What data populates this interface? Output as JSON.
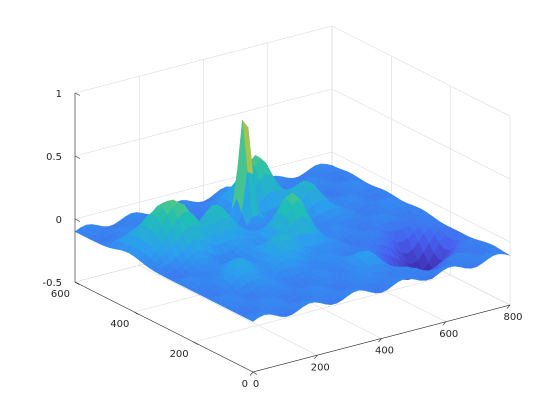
{
  "chart_data": {
    "type": "surface",
    "title": "",
    "xlabel": "",
    "ylabel": "",
    "zlabel": "",
    "xlim": [
      0,
      800
    ],
    "ylim": [
      0,
      600
    ],
    "zlim": [
      -0.5,
      1
    ],
    "xticks": [
      "0",
      "200",
      "400",
      "600",
      "800"
    ],
    "yticks": [
      "0",
      "200",
      "400",
      "600"
    ],
    "zticks": [
      "-0.5",
      "0",
      "0.5",
      "1"
    ],
    "grid": true,
    "colormap": "parula",
    "colors": [
      "#3e26a8",
      "#4760f0",
      "#2b9ef0",
      "#20bfb5",
      "#7fcc5a",
      "#e0b83a",
      "#f9fb0e"
    ],
    "surface_extent": {
      "x": [
        0,
        800
      ],
      "y": [
        0,
        600
      ]
    },
    "baseline_z": -0.1,
    "peaks": [
      {
        "x": 390,
        "y": 450,
        "z": 0.82
      },
      {
        "x": 470,
        "y": 500,
        "z": 0.3
      },
      {
        "x": 400,
        "y": 300,
        "z": 0.27
      },
      {
        "x": 130,
        "y": 380,
        "z": 0.26
      },
      {
        "x": 250,
        "y": 390,
        "z": 0.2
      },
      {
        "x": 70,
        "y": 420,
        "z": 0.15
      },
      {
        "x": 300,
        "y": 230,
        "z": 0.1
      },
      {
        "x": 560,
        "y": 420,
        "z": 0.12
      },
      {
        "x": 450,
        "y": 110,
        "z": 0.0
      },
      {
        "x": 150,
        "y": 200,
        "z": 0.05
      }
    ],
    "troughs": [
      {
        "x": 700,
        "y": 180,
        "z": -0.45
      },
      {
        "x": 600,
        "y": 130,
        "z": -0.32
      },
      {
        "x": 250,
        "y": 480,
        "z": -0.2
      },
      {
        "x": 430,
        "y": 60,
        "z": -0.12
      }
    ]
  }
}
